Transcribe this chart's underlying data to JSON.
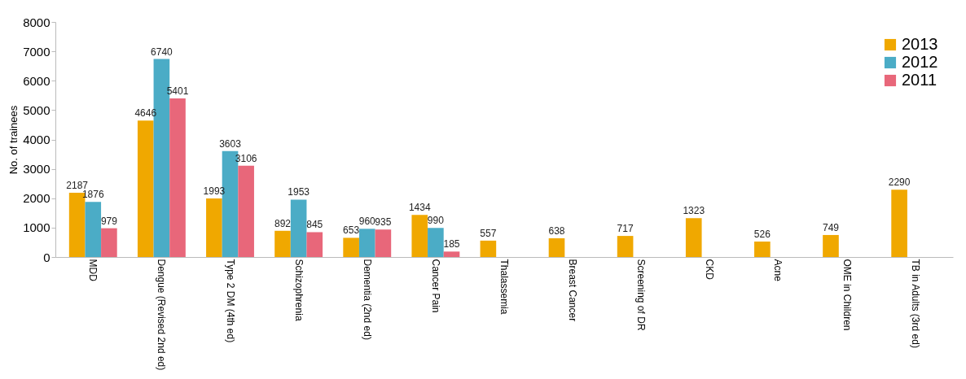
{
  "chart_data": {
    "type": "bar",
    "ylabel": "No. of  trainees",
    "categories": [
      "MDD",
      "Dengue (Revised 2nd ed)",
      "Type 2 DM (4th ed)",
      "Schizophrenia",
      "Dementia (2nd ed)",
      "Cancer Pain",
      "Thalassemia",
      "Breast Cancer",
      "Screening of DR",
      "CKD",
      "Acne",
      "OME in Children",
      "TB in Adults (3rd ed)"
    ],
    "series": [
      {
        "name": "2013",
        "color": "#f0a800",
        "values": [
          2187,
          4646,
          1993,
          892,
          653,
          1434,
          557,
          638,
          717,
          1323,
          526,
          749,
          2290
        ]
      },
      {
        "name": "2012",
        "color": "#4bacc6",
        "values": [
          1876,
          6740,
          3603,
          1953,
          960,
          990,
          null,
          null,
          null,
          null,
          null,
          null,
          null
        ]
      },
      {
        "name": "2011",
        "color": "#e8677a",
        "values": [
          979,
          5401,
          3106,
          845,
          935,
          185,
          null,
          null,
          null,
          null,
          null,
          null,
          null
        ]
      }
    ],
    "ylim": [
      0,
      8000
    ],
    "yticks": [
      0,
      1000,
      2000,
      3000,
      4000,
      5000,
      6000,
      7000,
      8000
    ],
    "data_labels": true,
    "legend": "top right",
    "grid": false
  }
}
